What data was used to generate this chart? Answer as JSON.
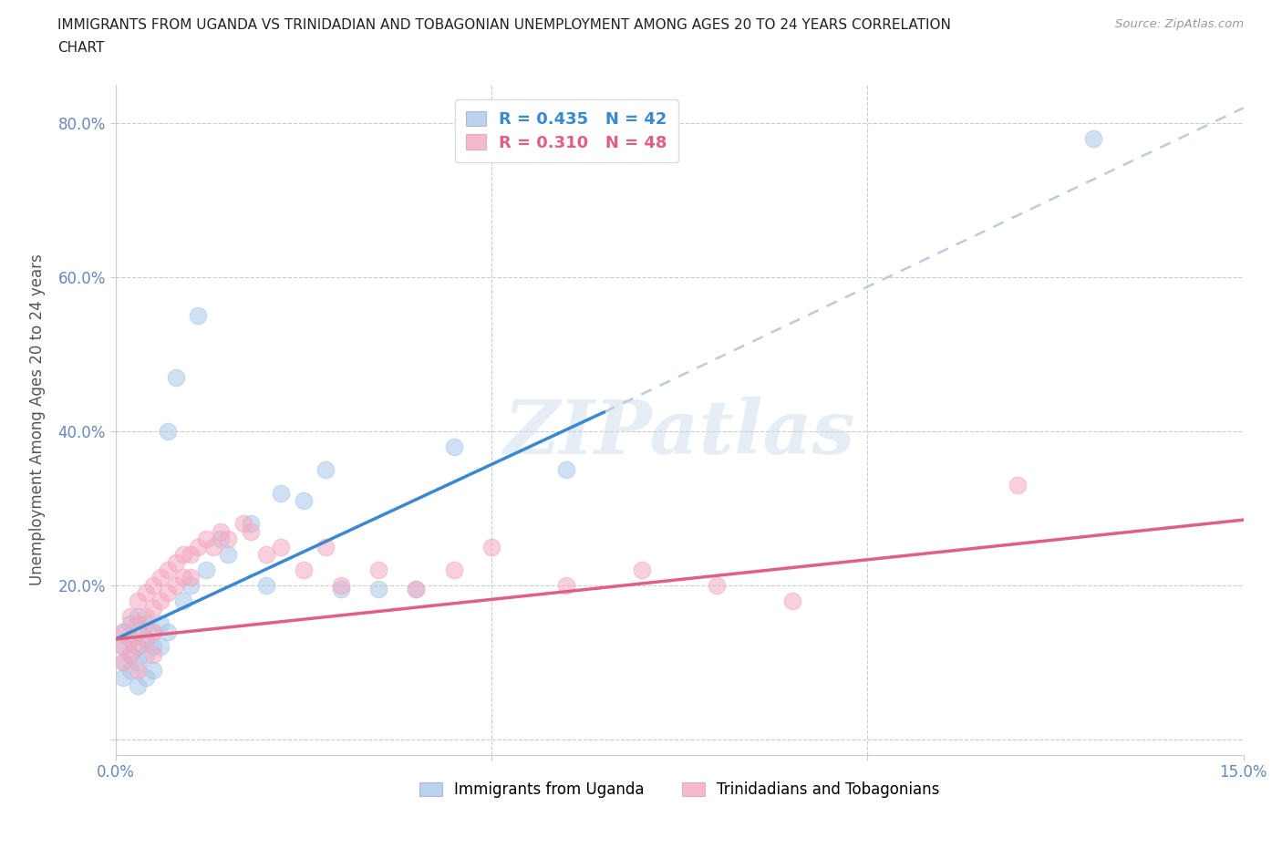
{
  "title_line1": "IMMIGRANTS FROM UGANDA VS TRINIDADIAN AND TOBAGONIAN UNEMPLOYMENT AMONG AGES 20 TO 24 YEARS CORRELATION",
  "title_line2": "CHART",
  "source": "Source: ZipAtlas.com",
  "ylabel": "Unemployment Among Ages 20 to 24 years",
  "xlim": [
    0.0,
    0.15
  ],
  "ylim": [
    -0.02,
    0.85
  ],
  "xtick_positions": [
    0.0,
    0.05,
    0.1,
    0.15
  ],
  "xticklabels": [
    "0.0%",
    "",
    "",
    "15.0%"
  ],
  "ytick_positions": [
    0.0,
    0.2,
    0.4,
    0.6,
    0.8
  ],
  "yticklabels": [
    "",
    "20.0%",
    "40.0%",
    "60.0%",
    "80.0%"
  ],
  "color_uganda": "#A8C8E8",
  "color_trini": "#F4A8C0",
  "color_uganda_line": "#3A88D0",
  "color_trini_line": "#E06080",
  "color_dash": "#BBCCDD",
  "watermark": "ZIPatlas",
  "label_uganda": "Immigrants from Uganda",
  "label_trini": "Trinidadians and Tobagonians",
  "uganda_x": [
    0.001,
    0.001,
    0.001,
    0.001,
    0.002,
    0.002,
    0.002,
    0.002,
    0.003,
    0.003,
    0.003,
    0.003,
    0.003,
    0.004,
    0.004,
    0.004,
    0.004,
    0.005,
    0.005,
    0.005,
    0.006,
    0.006,
    0.007,
    0.007,
    0.008,
    0.009,
    0.01,
    0.011,
    0.012,
    0.014,
    0.015,
    0.018,
    0.02,
    0.022,
    0.025,
    0.028,
    0.03,
    0.035,
    0.04,
    0.045,
    0.06,
    0.13
  ],
  "uganda_y": [
    0.14,
    0.12,
    0.1,
    0.08,
    0.15,
    0.13,
    0.11,
    0.09,
    0.16,
    0.14,
    0.12,
    0.1,
    0.07,
    0.15,
    0.13,
    0.11,
    0.08,
    0.14,
    0.12,
    0.09,
    0.15,
    0.12,
    0.4,
    0.14,
    0.47,
    0.18,
    0.2,
    0.55,
    0.22,
    0.26,
    0.24,
    0.28,
    0.2,
    0.32,
    0.31,
    0.35,
    0.195,
    0.195,
    0.195,
    0.38,
    0.35,
    0.78
  ],
  "trini_x": [
    0.001,
    0.001,
    0.001,
    0.002,
    0.002,
    0.002,
    0.003,
    0.003,
    0.003,
    0.003,
    0.004,
    0.004,
    0.004,
    0.005,
    0.005,
    0.005,
    0.005,
    0.006,
    0.006,
    0.007,
    0.007,
    0.008,
    0.008,
    0.009,
    0.009,
    0.01,
    0.01,
    0.011,
    0.012,
    0.013,
    0.014,
    0.015,
    0.017,
    0.018,
    0.02,
    0.022,
    0.025,
    0.028,
    0.03,
    0.035,
    0.04,
    0.045,
    0.05,
    0.06,
    0.07,
    0.08,
    0.09,
    0.12
  ],
  "trini_y": [
    0.14,
    0.12,
    0.1,
    0.16,
    0.13,
    0.11,
    0.18,
    0.15,
    0.12,
    0.09,
    0.19,
    0.16,
    0.13,
    0.2,
    0.17,
    0.14,
    0.11,
    0.21,
    0.18,
    0.22,
    0.19,
    0.23,
    0.2,
    0.24,
    0.21,
    0.24,
    0.21,
    0.25,
    0.26,
    0.25,
    0.27,
    0.26,
    0.28,
    0.27,
    0.24,
    0.25,
    0.22,
    0.25,
    0.2,
    0.22,
    0.195,
    0.22,
    0.25,
    0.2,
    0.22,
    0.2,
    0.18,
    0.33
  ],
  "uganda_line_x0": 0.0,
  "uganda_line_y0": 0.13,
  "uganda_line_x1": 0.065,
  "uganda_line_y1": 0.425,
  "dash_line_x0": 0.065,
  "dash_line_y0": 0.425,
  "dash_line_x1": 0.15,
  "dash_line_y1": 0.82,
  "trini_line_x0": 0.0,
  "trini_line_y0": 0.13,
  "trini_line_x1": 0.15,
  "trini_line_y1": 0.285
}
